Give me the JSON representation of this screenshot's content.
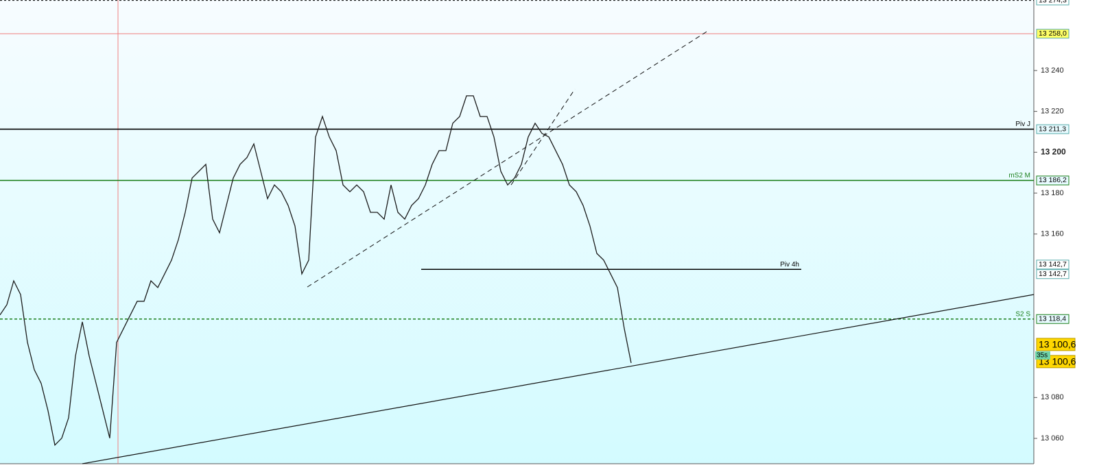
{
  "chart_data": {
    "type": "line",
    "color": "#1a1a1a",
    "values": [
      13120.4,
      13125.4,
      13137.1,
      13130.4,
      13107.0,
      13093.6,
      13086.9,
      13073.5,
      13056.7,
      13060.1,
      13070.1,
      13100.3,
      13117.0,
      13100.3,
      13086.9,
      13073.5,
      13060.1,
      13107.0,
      13113.7,
      13120.4,
      13127.1,
      13127.1,
      13137.1,
      13133.8,
      13140.5,
      13147.2,
      13157.2,
      13170.6,
      13187.4,
      13190.7,
      13194.1,
      13167.3,
      13160.6,
      13174.0,
      13187.4,
      13194.1,
      13197.4,
      13204.1,
      13190.7,
      13177.3,
      13184.0,
      13180.7,
      13174.0,
      13163.9,
      13140.5,
      13147.2,
      13207.5,
      13217.5,
      13207.5,
      13200.8,
      13184.0,
      13180.7,
      13184.0,
      13180.7,
      13170.6,
      13170.6,
      13167.3,
      13184.0,
      13170.6,
      13167.3,
      13174.0,
      13177.3,
      13184.0,
      13194.1,
      13200.8,
      13200.8,
      13214.2,
      13217.5,
      13227.6,
      13227.6,
      13217.5,
      13217.5,
      13207.5,
      13190.7,
      13184.0,
      13187.4,
      13194.1,
      13207.5,
      13214.2,
      13209.2,
      13207.5,
      13200.8,
      13194.1,
      13184.0,
      13180.7,
      13174.0,
      13163.9,
      13150.5,
      13147.2,
      13140.5,
      13133.8,
      13113.7,
      13096.9
    ],
    "ylim": [
      13047.6,
      13274.5
    ],
    "yticks": [
      {
        "value": 13060,
        "label": "13 060"
      },
      {
        "value": 13080,
        "label": "13 080"
      },
      {
        "value": 13160,
        "label": "13 160"
      },
      {
        "value": 13180,
        "label": "13 180"
      },
      {
        "value": 13200,
        "label": "13 200"
      },
      {
        "value": 13220,
        "label": "13 220"
      },
      {
        "value": 13240,
        "label": "13 240"
      }
    ],
    "bold_tick": 13200,
    "levels": [
      {
        "value": 13274.3,
        "label": "13 274,3",
        "color": "#000000",
        "dash": "3,3",
        "box": "#ffffff"
      },
      {
        "value": 13258.0,
        "label": "13 258,0",
        "color": "#f08080",
        "box": "#ffff66"
      },
      {
        "name": "Piv J",
        "value": 13211.3,
        "label": "13 211,3",
        "color": "#000000",
        "box": "#e8fbff"
      },
      {
        "name": "mS2 M",
        "value": 13186.2,
        "label": "13 186,2",
        "color": "#1a7f1a",
        "box": "#e8fbff"
      },
      {
        "name": "Piv 4h",
        "value": 13142.7,
        "label": "13 142,7",
        "color": "#000000",
        "box": "#ffffff"
      },
      {
        "value": 13142.7,
        "label": "13 142,7",
        "color": "#000000",
        "box": "#ffffff"
      },
      {
        "name": "S2 S",
        "value": 13118.4,
        "label": "13 118,4",
        "color": "#1a7f1a",
        "dash": "4,3",
        "box": "#e8fbff"
      }
    ],
    "current": {
      "value": 13100.6,
      "label": "13 100,6",
      "countdown": "35s"
    }
  }
}
